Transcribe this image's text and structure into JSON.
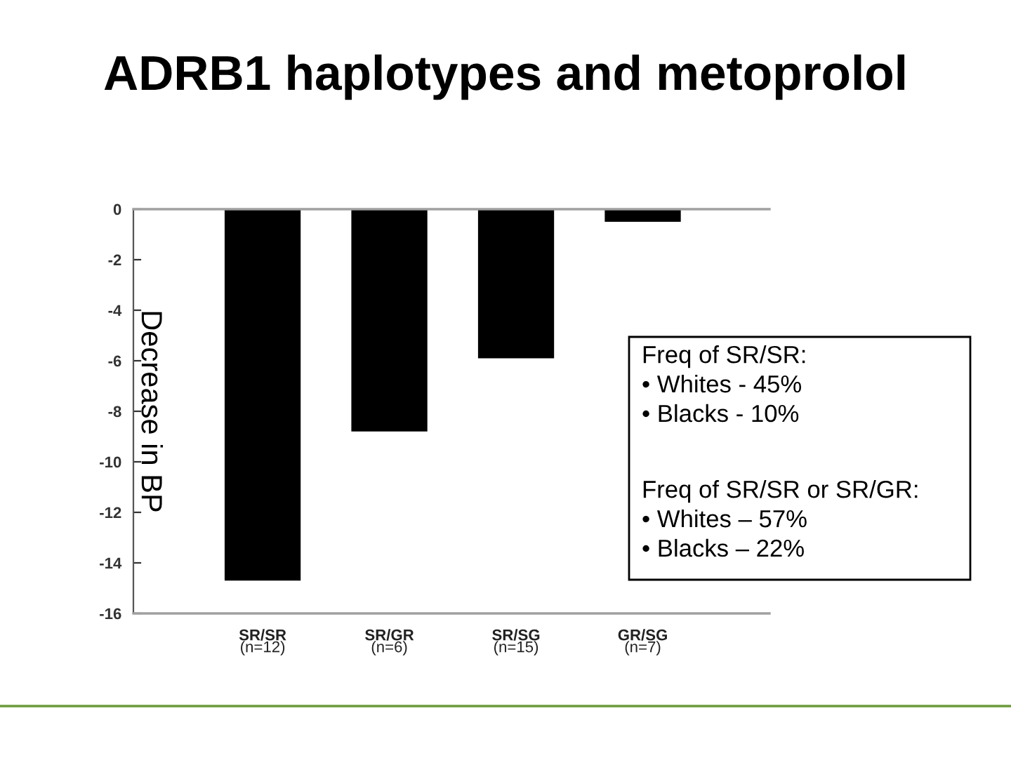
{
  "chart_data": {
    "type": "bar",
    "title": "ADRB1 haplotypes and metoprolol",
    "ylabel": "Decrease in BP",
    "categories": [
      "SR/SR\n(n=12)",
      "SR/GR\n(n=6)",
      "SR/SG\n(n=15)",
      "GR/SG\n(n=7)"
    ],
    "values": [
      -14.7,
      -8.8,
      -5.9,
      -0.5
    ],
    "color": "#000000",
    "ylim": [
      -16,
      0
    ],
    "yticks": [
      0,
      -2,
      -4,
      -6,
      -8,
      -10,
      -12,
      -14,
      -16
    ],
    "annotations": [
      "Freq of SR/SR:\n• Whites - 45%\n• Blacks - 10%",
      "Freq of SR/SR or SR/GR:\n• Whites – 57%\n• Blacks – 22%"
    ]
  }
}
